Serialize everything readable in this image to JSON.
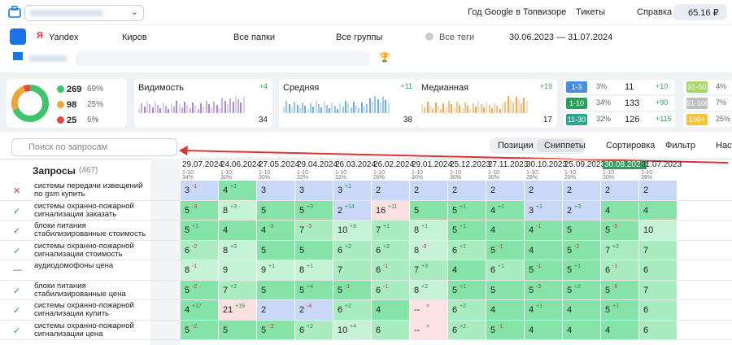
{
  "topbar": {
    "links": [
      "Год Google в Топвизоре",
      "Тикеты",
      "Справка"
    ],
    "balance": "65.16 ₽"
  },
  "filters": {
    "engine": "Yandex",
    "region": "Киров",
    "folders": "Все папки",
    "groups": "Все группы",
    "tags": "Все теги",
    "dates": "30.06.2023 — 31.07.2024"
  },
  "summary": {
    "donut": {
      "counts": [
        269,
        98,
        25
      ],
      "values": [
        69,
        25,
        6
      ],
      "value_labels": [
        "69%",
        "25%",
        "6%"
      ],
      "colors": [
        "#3ec46d",
        "#f0a53a",
        "#e8453c"
      ]
    },
    "metrics": [
      {
        "name": "Видимость",
        "change": "+4",
        "value": 34,
        "color": "#9b6fd6"
      },
      {
        "name": "Средняя",
        "change": "+11",
        "value": 38,
        "color": "#4a9fe8"
      },
      {
        "name": "Медианная",
        "change": "+19",
        "value": 17,
        "color": "#f0962e"
      }
    ],
    "ranges": [
      {
        "label": "1-3",
        "percent": "3%",
        "count": 11,
        "change": "+10",
        "color": "#4a8fe0"
      },
      {
        "label": "1-10",
        "percent": "34%",
        "count": 133,
        "change": "+90",
        "color": "#2e9e5e"
      },
      {
        "label": "11-30",
        "percent": "32%",
        "count": 126,
        "change": "+115",
        "color": "#29a88f"
      }
    ],
    "ranges2": [
      {
        "label": "31-50",
        "percent": "4%",
        "color": "#a6d96a"
      },
      {
        "label": "51-100",
        "percent": "7%",
        "color": "#bfbfbf"
      },
      {
        "label": "100+",
        "percent": "25%",
        "color": "#f6c33a"
      }
    ]
  },
  "toolbar": {
    "search_placeholder": "Поиск по запросам",
    "tabs": [
      "Позиции",
      "Сниппеты"
    ],
    "sort": "Сортировка",
    "filter": "Фильтр",
    "settings": "Наст"
  },
  "table": {
    "title": "Запросы",
    "count": "(467)",
    "columns": [
      {
        "date": "29.07.2024",
        "range": "1-10",
        "share": "34%"
      },
      {
        "date": "24.06.2024",
        "range": "1-10",
        "share": "30%"
      },
      {
        "date": "27.05.2024",
        "range": "1-10",
        "share": "30%"
      },
      {
        "date": "29.04.2024",
        "range": "1-10",
        "share": "32%"
      },
      {
        "date": "26.03.2024",
        "range": "1-10",
        "share": "32%"
      },
      {
        "date": "26.02.2024",
        "range": "1-10",
        "share": "28%"
      },
      {
        "date": "29.01.2024",
        "range": "1-10",
        "share": "30%"
      },
      {
        "date": "25.12.2023",
        "range": "1-10",
        "share": "30%"
      },
      {
        "date": "27.11.2023",
        "range": "1-10",
        "share": "30%"
      },
      {
        "date": "30.10.2023",
        "range": "1-10",
        "share": "29%"
      },
      {
        "date": "25.09.2023",
        "range": "1-10",
        "share": "29%"
      },
      {
        "date": "30.08.2023",
        "range": "1-10",
        "share": "30%",
        "highlight": true
      },
      {
        "date": "31.07.2023",
        "range": "1-10",
        "share": "39%"
      }
    ],
    "rows": [
      {
        "icon": "✕",
        "query": "системы передачи извещений по gsm купить",
        "cells": [
          {
            "pos": 3,
            "delta": "-1"
          },
          {
            "pos": 4,
            "delta": "+1"
          },
          {
            "pos": 3
          },
          {
            "pos": 3
          },
          {
            "pos": 3,
            "delta": "+1"
          },
          {
            "pos": 2
          },
          {
            "pos": 2
          },
          {
            "pos": 2
          },
          {
            "pos": 2
          },
          {
            "pos": 2
          },
          {
            "pos": 2
          },
          {
            "pos": 2
          },
          {
            "pos": 2
          }
        ]
      },
      {
        "icon": "✓",
        "query": "системы охранно-пожарной сигнализации заказать",
        "cells": [
          {
            "pos": 5,
            "delta": "-3"
          },
          {
            "pos": 8,
            "delta": "+3"
          },
          {
            "pos": 5
          },
          {
            "pos": 5,
            "delta": "+3"
          },
          {
            "pos": 2,
            "delta": "+14"
          },
          {
            "pos": 16,
            "delta": "+11"
          },
          {
            "pos": 5
          },
          {
            "pos": 5,
            "delta": "+1"
          },
          {
            "pos": 4,
            "delta": "+1"
          },
          {
            "pos": 3,
            "delta": "+1"
          },
          {
            "pos": 2,
            "delta": "+3"
          },
          {
            "pos": 4
          },
          {
            "pos": 4
          }
        ]
      },
      {
        "icon": "✓",
        "query": "блоки питания стабилизированные стоимость",
        "cells": [
          {
            "pos": 5,
            "delta": "+1"
          },
          {
            "pos": 4
          },
          {
            "pos": 4,
            "delta": "-3"
          },
          {
            "pos": 7,
            "delta": "-3"
          },
          {
            "pos": 10,
            "delta": "+3"
          },
          {
            "pos": 7,
            "delta": "+1"
          },
          {
            "pos": 8,
            "delta": "+1"
          },
          {
            "pos": 5,
            "delta": "+1"
          },
          {
            "pos": 4
          },
          {
            "pos": 4,
            "delta": "-1"
          },
          {
            "pos": 5
          },
          {
            "pos": 5,
            "delta": "-5"
          },
          {
            "pos": 10
          }
        ]
      },
      {
        "icon": "✓",
        "query": "системы охранно-пожарной сигнализации стоимость",
        "cells": [
          {
            "pos": 6,
            "delta": "-2"
          },
          {
            "pos": 8,
            "delta": "+3"
          },
          {
            "pos": 5
          },
          {
            "pos": 5
          },
          {
            "pos": 6,
            "delta": "+2"
          },
          {
            "pos": 6,
            "delta": "+2"
          },
          {
            "pos": 8,
            "delta": "-3"
          },
          {
            "pos": 6,
            "delta": "+1"
          },
          {
            "pos": 5,
            "delta": "-1"
          },
          {
            "pos": 4
          },
          {
            "pos": 5,
            "delta": "-2"
          },
          {
            "pos": 7,
            "delta": "+2"
          },
          {
            "pos": 7
          }
        ]
      },
      {
        "icon": "—",
        "query": "аудиодомофоны цена",
        "cells": [
          {
            "pos": 8,
            "delta": "-1"
          },
          {
            "pos": 9
          },
          {
            "pos": 9,
            "delta": "+1"
          },
          {
            "pos": 8,
            "delta": "+1"
          },
          {
            "pos": 7
          },
          {
            "pos": 6,
            "delta": "-1"
          },
          {
            "pos": 7,
            "delta": "+3"
          },
          {
            "pos": 4
          },
          {
            "pos": 6,
            "delta": "+1"
          },
          {
            "pos": 5,
            "delta": "-1"
          },
          {
            "pos": 5,
            "delta": "+1"
          },
          {
            "pos": 6,
            "delta": "-1"
          },
          {
            "pos": 6
          }
        ]
      },
      {
        "icon": "✓",
        "query": "блоки питания стабилизированные цена",
        "cells": [
          {
            "pos": 5,
            "delta": "-2"
          },
          {
            "pos": 7,
            "delta": "+2"
          },
          {
            "pos": 5
          },
          {
            "pos": 5,
            "delta": "+4"
          },
          {
            "pos": 5,
            "delta": "-1"
          },
          {
            "pos": 6,
            "delta": "-1"
          },
          {
            "pos": 8,
            "delta": "+2"
          },
          {
            "pos": 5,
            "delta": "+1"
          },
          {
            "pos": 5
          },
          {
            "pos": 5,
            "delta": "-3"
          },
          {
            "pos": 5,
            "delta": "+2"
          },
          {
            "pos": 5,
            "delta": "-6"
          },
          {
            "pos": 7
          }
        ]
      },
      {
        "icon": "✓",
        "query": "системы охранно-пожарной сигнализации купить",
        "cells": [
          {
            "pos": 4,
            "delta": "+17"
          },
          {
            "pos": 21,
            "delta": "+19"
          },
          {
            "pos": 2
          },
          {
            "pos": 2,
            "delta": "-4"
          },
          {
            "pos": 6,
            "delta": "+2"
          },
          {
            "pos": 4
          },
          {
            "pos": "--",
            "delta": "×"
          },
          {
            "pos": 6,
            "delta": "+2"
          },
          {
            "pos": 4
          },
          {
            "pos": 4,
            "delta": "+1"
          },
          {
            "pos": 4
          },
          {
            "pos": 5,
            "delta": "+1"
          },
          {
            "pos": 6
          }
        ]
      },
      {
        "icon": "✓",
        "query": "системы охранно-пожарной сигнализации цена",
        "cells": [
          {
            "pos": 5,
            "delta": "-2"
          },
          {
            "pos": 5
          },
          {
            "pos": 5,
            "delta": "-3"
          },
          {
            "pos": 6,
            "delta": "+2"
          },
          {
            "pos": 10,
            "delta": "+4"
          },
          {
            "pos": 6
          },
          {
            "pos": "--",
            "delta": "×"
          },
          {
            "pos": 6,
            "delta": "+2"
          },
          {
            "pos": 5,
            "delta": "-1"
          },
          {
            "pos": 4
          },
          {
            "pos": 4
          },
          {
            "pos": 4
          },
          {
            "pos": 6
          }
        ]
      }
    ]
  }
}
